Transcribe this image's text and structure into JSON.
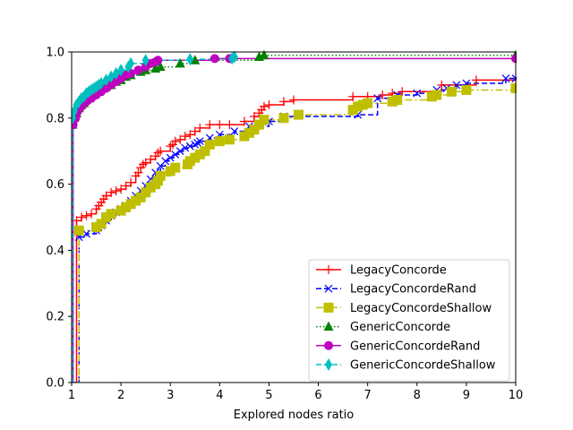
{
  "chart_data": {
    "type": "line",
    "xlabel": "Explored nodes ratio",
    "ylabel": "",
    "xlim": [
      1,
      10
    ],
    "ylim": [
      0,
      1
    ],
    "xticks": [
      "1",
      "2",
      "3",
      "4",
      "5",
      "6",
      "7",
      "8",
      "9",
      "10"
    ],
    "yticks": [
      "0.0",
      "0.2",
      "0.4",
      "0.6",
      "0.8",
      "1.0"
    ],
    "grid": false,
    "legend_position": "lower-right",
    "series": [
      {
        "name": "LegacyConcorde",
        "color": "#ff0000",
        "linestyle": "solid",
        "marker": "plus",
        "x": [
          1.0,
          1.1,
          1.2,
          1.3,
          1.4,
          1.5,
          1.55,
          1.6,
          1.65,
          1.7,
          1.8,
          1.9,
          2.0,
          2.1,
          2.2,
          2.3,
          2.35,
          2.4,
          2.45,
          2.5,
          2.6,
          2.7,
          2.75,
          2.8,
          3.0,
          3.05,
          3.1,
          3.2,
          3.3,
          3.4,
          3.5,
          3.6,
          3.8,
          4.0,
          4.2,
          4.5,
          4.7,
          4.8,
          4.85,
          4.9,
          5.0,
          5.3,
          5.5,
          6.7,
          7.0,
          7.3,
          7.5,
          7.7,
          8.5,
          9.2,
          10.0
        ],
        "y": [
          0.0,
          0.49,
          0.5,
          0.505,
          0.51,
          0.525,
          0.535,
          0.545,
          0.555,
          0.565,
          0.575,
          0.58,
          0.585,
          0.595,
          0.605,
          0.625,
          0.635,
          0.65,
          0.66,
          0.665,
          0.675,
          0.685,
          0.695,
          0.7,
          0.715,
          0.72,
          0.73,
          0.735,
          0.745,
          0.75,
          0.76,
          0.77,
          0.78,
          0.78,
          0.78,
          0.79,
          0.805,
          0.815,
          0.825,
          0.835,
          0.84,
          0.85,
          0.855,
          0.865,
          0.865,
          0.87,
          0.875,
          0.88,
          0.9,
          0.915,
          0.915
        ]
      },
      {
        "name": "LegacyConcordeRand",
        "color": "#0000ff",
        "linestyle": "dashed",
        "marker": "x",
        "x": [
          1.0,
          1.15,
          1.3,
          1.5,
          1.6,
          1.7,
          1.8,
          1.9,
          2.0,
          2.1,
          2.2,
          2.3,
          2.4,
          2.5,
          2.6,
          2.7,
          2.8,
          2.9,
          3.0,
          3.1,
          3.2,
          3.3,
          3.4,
          3.5,
          3.55,
          3.6,
          3.8,
          4.0,
          4.3,
          4.6,
          5.0,
          5.3,
          6.8,
          7.2,
          7.6,
          8.0,
          8.4,
          8.6,
          8.8,
          9.0,
          9.8,
          10.0
        ],
        "y": [
          0.0,
          0.44,
          0.45,
          0.46,
          0.475,
          0.49,
          0.505,
          0.515,
          0.525,
          0.535,
          0.55,
          0.565,
          0.58,
          0.595,
          0.615,
          0.635,
          0.655,
          0.67,
          0.68,
          0.69,
          0.7,
          0.71,
          0.715,
          0.72,
          0.725,
          0.73,
          0.74,
          0.75,
          0.76,
          0.775,
          0.79,
          0.805,
          0.81,
          0.86,
          0.87,
          0.875,
          0.885,
          0.89,
          0.9,
          0.905,
          0.92,
          0.92
        ]
      },
      {
        "name": "LegacyConcordeShallow",
        "color": "#bfbf00",
        "linestyle": "dashdot",
        "marker": "square",
        "x": [
          1.0,
          1.15,
          1.5,
          1.6,
          1.7,
          1.8,
          2.0,
          2.1,
          2.2,
          2.3,
          2.4,
          2.5,
          2.6,
          2.7,
          2.75,
          2.8,
          3.0,
          3.1,
          3.35,
          3.4,
          3.5,
          3.6,
          3.7,
          3.8,
          4.0,
          4.2,
          4.5,
          4.6,
          4.7,
          4.8,
          4.9,
          5.3,
          5.6,
          6.7,
          6.8,
          6.9,
          7.0,
          7.5,
          7.6,
          8.3,
          8.4,
          8.7,
          9.0,
          10.0
        ],
        "y": [
          0.0,
          0.46,
          0.47,
          0.48,
          0.5,
          0.51,
          0.52,
          0.53,
          0.54,
          0.55,
          0.56,
          0.575,
          0.59,
          0.6,
          0.61,
          0.625,
          0.64,
          0.65,
          0.66,
          0.67,
          0.68,
          0.69,
          0.7,
          0.72,
          0.73,
          0.735,
          0.745,
          0.755,
          0.765,
          0.78,
          0.795,
          0.8,
          0.81,
          0.825,
          0.835,
          0.84,
          0.845,
          0.85,
          0.855,
          0.865,
          0.87,
          0.88,
          0.885,
          0.89
        ]
      },
      {
        "name": "GenericConcorde",
        "color": "#008000",
        "linestyle": "dotted",
        "marker": "triangle",
        "x": [
          1.0,
          1.02,
          1.05,
          1.1,
          1.15,
          1.2,
          1.25,
          1.3,
          1.35,
          1.4,
          1.45,
          1.5,
          1.55,
          1.6,
          1.7,
          1.8,
          1.9,
          2.0,
          2.1,
          2.2,
          2.4,
          2.5,
          2.7,
          2.8,
          3.2,
          3.5,
          4.8,
          4.9,
          10.0
        ],
        "y": [
          0.0,
          0.78,
          0.8,
          0.815,
          0.83,
          0.84,
          0.845,
          0.855,
          0.86,
          0.87,
          0.875,
          0.88,
          0.885,
          0.89,
          0.895,
          0.9,
          0.91,
          0.915,
          0.925,
          0.93,
          0.94,
          0.945,
          0.95,
          0.955,
          0.965,
          0.975,
          0.985,
          0.99,
          0.99
        ]
      },
      {
        "name": "GenericConcordeRand",
        "color": "#bf00bf",
        "linestyle": "solid",
        "marker": "circle",
        "x": [
          1.0,
          1.03,
          1.08,
          1.12,
          1.2,
          1.3,
          1.4,
          1.5,
          1.6,
          1.7,
          1.8,
          1.9,
          2.0,
          2.1,
          2.2,
          2.35,
          2.5,
          2.6,
          2.7,
          2.75,
          3.9,
          4.2,
          10.0
        ],
        "y": [
          0.0,
          0.78,
          0.8,
          0.82,
          0.835,
          0.85,
          0.86,
          0.87,
          0.88,
          0.89,
          0.9,
          0.91,
          0.92,
          0.93,
          0.935,
          0.945,
          0.955,
          0.965,
          0.97,
          0.975,
          0.98,
          0.98,
          0.98
        ]
      },
      {
        "name": "GenericConcordeShallow",
        "color": "#00bfbf",
        "linestyle": "dashed",
        "marker": "thin_diamond",
        "x": [
          1.0,
          1.02,
          1.05,
          1.1,
          1.15,
          1.2,
          1.25,
          1.3,
          1.35,
          1.4,
          1.45,
          1.5,
          1.55,
          1.6,
          1.7,
          1.8,
          1.9,
          2.0,
          2.15,
          2.2,
          2.5,
          3.4,
          4.25,
          4.3
        ],
        "y": [
          0.0,
          0.8,
          0.82,
          0.84,
          0.85,
          0.86,
          0.865,
          0.875,
          0.88,
          0.885,
          0.89,
          0.895,
          0.9,
          0.905,
          0.915,
          0.925,
          0.935,
          0.945,
          0.955,
          0.965,
          0.975,
          0.978,
          0.98,
          0.985
        ]
      }
    ]
  }
}
